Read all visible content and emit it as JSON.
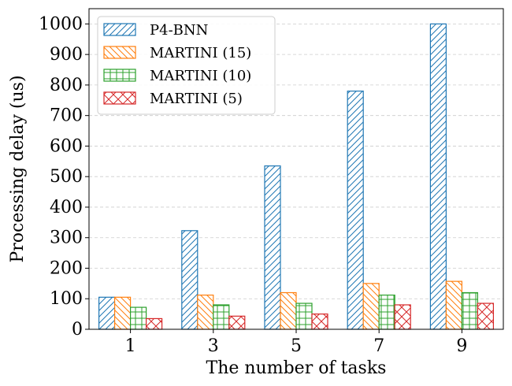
{
  "chart_data": {
    "type": "bar",
    "title": "",
    "xlabel": "The number of tasks",
    "ylabel": "Processing delay (us)",
    "categories": [
      "1",
      "3",
      "5",
      "7",
      "9"
    ],
    "ylim": [
      0,
      1050
    ],
    "yticks": [
      0,
      100,
      200,
      300,
      400,
      500,
      600,
      700,
      800,
      900,
      1000
    ],
    "grid": "horizontal-dashed",
    "legend_position": "top-left",
    "series": [
      {
        "name": "P4-BNN",
        "color": "#1f77b4",
        "hatch": "diagonal",
        "values": [
          105,
          323,
          535,
          780,
          1000
        ]
      },
      {
        "name": "MARTINI (15)",
        "color": "#ff7f0e",
        "hatch": "back-diagonal",
        "values": [
          105,
          112,
          120,
          150,
          157
        ]
      },
      {
        "name": "MARTINI (10)",
        "color": "#2ca02c",
        "hatch": "grid",
        "values": [
          72,
          80,
          85,
          112,
          120
        ]
      },
      {
        "name": "MARTINI (5)",
        "color": "#d62728",
        "hatch": "cross",
        "values": [
          35,
          43,
          50,
          80,
          85
        ]
      }
    ]
  }
}
